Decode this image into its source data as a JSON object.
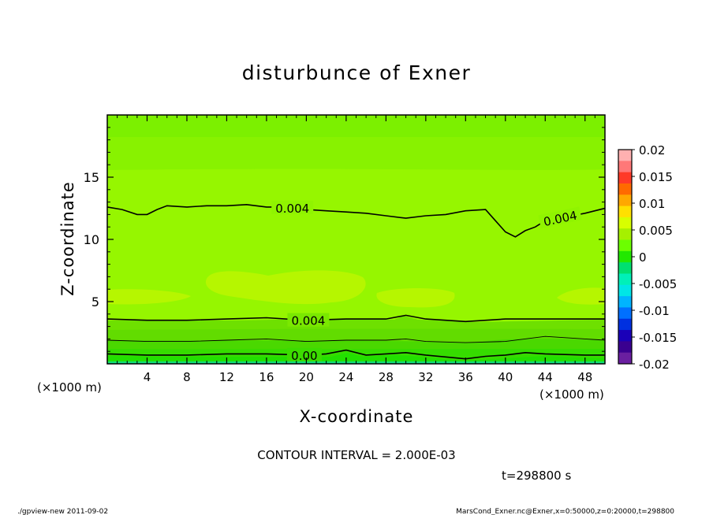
{
  "chart_data": {
    "type": "heatmap",
    "title": "disturbunce of Exner",
    "xlabel": "X-coordinate",
    "ylabel": "Z-coordinate",
    "x_unit_left": "(×1000 m)",
    "x_unit_right": "(×1000 m)",
    "xlim": [
      0,
      50
    ],
    "ylim": [
      0,
      20
    ],
    "x_ticks": [
      4,
      8,
      12,
      16,
      20,
      24,
      28,
      32,
      36,
      40,
      44,
      48
    ],
    "x_tick_labels": [
      "4",
      "8",
      "12",
      "16",
      "20",
      "24",
      "28",
      "32",
      "36",
      "40",
      "44",
      "48"
    ],
    "y_ticks": [
      5,
      10,
      15
    ],
    "y_tick_labels": [
      "5",
      "10",
      "15"
    ],
    "colorbar": {
      "levels": [
        0.02,
        0.015,
        0.01,
        0.005,
        0,
        -0.005,
        -0.01,
        -0.015,
        -0.02
      ],
      "labels": [
        "0.02",
        "0.015",
        "0.01",
        "0.005",
        "0",
        "-0.005",
        "-0.01",
        "-0.015",
        "-0.02"
      ],
      "colors": [
        "#ffb0b0",
        "#ff7878",
        "#ff3a28",
        "#ff6a00",
        "#ffa800",
        "#ffe000",
        "#d8ff00",
        "#a6f000",
        "#6cff00",
        "#22e800",
        "#00e070",
        "#00f0b8",
        "#00e6e6",
        "#00b4ff",
        "#0070ff",
        "#0030e0",
        "#1a00b8",
        "#3a0090",
        "#6a1fa0"
      ]
    },
    "contours": [
      {
        "label": "0.004",
        "points": [
          [
            0,
            12.6
          ],
          [
            1.5,
            12.4
          ],
          [
            3,
            12.0
          ],
          [
            4,
            12.0
          ],
          [
            5,
            12.4
          ],
          [
            6,
            12.7
          ],
          [
            8,
            12.6
          ],
          [
            10,
            12.7
          ],
          [
            12,
            12.7
          ],
          [
            14,
            12.8
          ],
          [
            16,
            12.6
          ],
          [
            18,
            12.6
          ],
          [
            20,
            12.4
          ],
          [
            22,
            12.3
          ],
          [
            24,
            12.2
          ],
          [
            26,
            12.1
          ],
          [
            28,
            11.9
          ],
          [
            30,
            11.7
          ],
          [
            32,
            11.9
          ],
          [
            34,
            12.0
          ],
          [
            36,
            12.3
          ],
          [
            38,
            12.4
          ],
          [
            39,
            11.5
          ],
          [
            40,
            10.6
          ],
          [
            41,
            10.2
          ],
          [
            42,
            10.7
          ],
          [
            43,
            11.0
          ],
          [
            44,
            11.5
          ],
          [
            46,
            11.8
          ],
          [
            48,
            12.1
          ],
          [
            50,
            12.5
          ]
        ]
      },
      {
        "label": "0.004",
        "points": [
          [
            0,
            3.6
          ],
          [
            4,
            3.5
          ],
          [
            8,
            3.5
          ],
          [
            12,
            3.6
          ],
          [
            16,
            3.7
          ],
          [
            20,
            3.5
          ],
          [
            24,
            3.6
          ],
          [
            28,
            3.6
          ],
          [
            30,
            3.9
          ],
          [
            32,
            3.6
          ],
          [
            36,
            3.4
          ],
          [
            40,
            3.6
          ],
          [
            44,
            3.6
          ],
          [
            48,
            3.6
          ],
          [
            50,
            3.6
          ]
        ]
      },
      {
        "label": "",
        "points": [
          [
            0,
            1.9
          ],
          [
            4,
            1.8
          ],
          [
            8,
            1.8
          ],
          [
            12,
            1.9
          ],
          [
            16,
            2.0
          ],
          [
            20,
            1.8
          ],
          [
            24,
            1.9
          ],
          [
            28,
            1.9
          ],
          [
            30,
            2.0
          ],
          [
            32,
            1.8
          ],
          [
            36,
            1.7
          ],
          [
            40,
            1.8
          ],
          [
            44,
            2.2
          ],
          [
            48,
            2.0
          ],
          [
            50,
            1.9
          ]
        ]
      },
      {
        "label": "0.00",
        "points": [
          [
            0,
            0.8
          ],
          [
            4,
            0.7
          ],
          [
            8,
            0.7
          ],
          [
            12,
            0.8
          ],
          [
            16,
            0.8
          ],
          [
            20,
            0.7
          ],
          [
            22,
            0.8
          ],
          [
            24,
            1.1
          ],
          [
            26,
            0.7
          ],
          [
            28,
            0.8
          ],
          [
            30,
            0.9
          ],
          [
            32,
            0.7
          ],
          [
            36,
            0.4
          ],
          [
            38,
            0.6
          ],
          [
            40,
            0.7
          ],
          [
            42,
            0.9
          ],
          [
            44,
            0.8
          ],
          [
            48,
            0.7
          ],
          [
            50,
            0.7
          ]
        ]
      }
    ]
  },
  "footer": {
    "contour_interval": "CONTOUR INTERVAL = 2.000E-03",
    "time": "t=298800 s",
    "left_info": "./gpview-new   2011-09-02",
    "right_info": "MarsCond_Exner.nc@Exner,x=0:50000,z=0:20000,t=298800"
  },
  "colors": {
    "top_band": "#7cf000",
    "band_high": "#88f200",
    "main_band": "#96f600",
    "blob": "#b6f600",
    "low_band1": "#6ee000",
    "low_band2": "#52d800",
    "low_band3": "#32e000",
    "bottom_band": "#12e07a"
  }
}
